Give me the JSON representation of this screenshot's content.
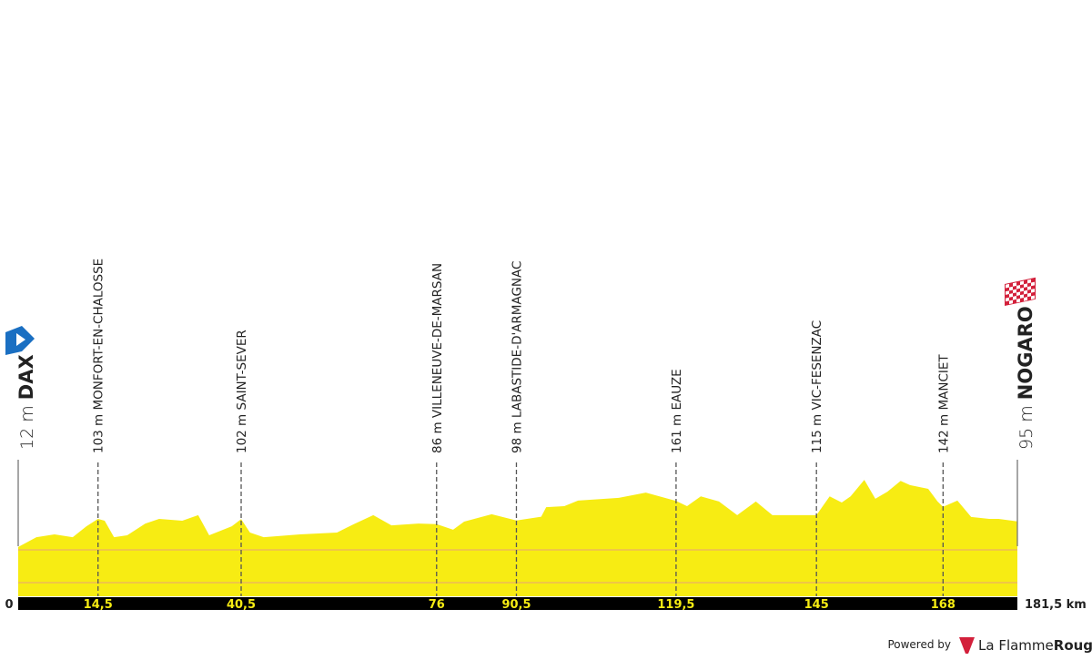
{
  "chart_data": {
    "type": "area",
    "color": "#f7ec13",
    "x": [
      0,
      3.3,
      6.6,
      9.9,
      12.4,
      14.5,
      15.7,
      17.4,
      19.8,
      23.1,
      25.6,
      29.8,
      32.7,
      34.7,
      38.8,
      40.5,
      42.1,
      44.6,
      51.2,
      57.9,
      61.2,
      64.5,
      67.8,
      72.7,
      76,
      79,
      81,
      86,
      90.5,
      95,
      95.9,
      99.2,
      101.7,
      109.1,
      114,
      119.5,
      121.5,
      124,
      127.3,
      130.6,
      134,
      137,
      142,
      145,
      147.4,
      149.6,
      151.2,
      153.7,
      155.7,
      157.9,
      160.3,
      162,
      165.3,
      167,
      168,
      170.6,
      173.1,
      176.4,
      178.1,
      181.5
    ],
    "values": [
      12,
      44,
      53,
      44,
      79,
      103,
      97,
      44,
      50,
      88,
      103,
      97,
      115,
      50,
      79,
      102,
      59,
      44,
      53,
      59,
      88,
      115,
      82,
      88,
      86,
      68,
      94,
      118,
      98,
      110,
      141,
      144,
      162,
      171,
      188,
      161,
      144,
      176,
      159,
      115,
      159,
      115,
      115,
      115,
      176,
      156,
      176,
      229,
      168,
      191,
      226,
      212,
      200,
      159,
      142,
      162,
      109,
      103,
      103,
      95
    ],
    "xlim": [
      0,
      181.5
    ],
    "ylim": [
      -147,
      300
    ],
    "xticks": [
      0,
      {
        "value": 14.5,
        "label": "14,5"
      },
      {
        "value": 40.5,
        "label": "40,5"
      },
      76,
      {
        "value": 90.5,
        "label": "90,5"
      },
      {
        "value": 119.5,
        "label": "119,5"
      },
      145,
      168,
      {
        "value": 181.5,
        "label": "181,5 km"
      }
    ],
    "start": {
      "altitude": "12 m",
      "name": "DAX"
    },
    "finish": {
      "altitude": "95 m",
      "name": "NOGARO"
    },
    "waypoints": [
      {
        "km": 14.5,
        "altitude": "103 m",
        "name": "MONFORT-EN-CHALOSSE"
      },
      {
        "km": 40.5,
        "altitude": "102 m",
        "name": "SAINT-SEVER"
      },
      {
        "km": 76,
        "altitude": "86 m",
        "name": "VILLENEUVE-DE-MARSAN"
      },
      {
        "km": 90.5,
        "altitude": "98 m",
        "name": "LABASTIDE-D'ARMAGNAC"
      },
      {
        "km": 119.5,
        "altitude": "161 m",
        "name": "EAUZE"
      },
      {
        "km": 145,
        "altitude": "115 m",
        "name": "VIC-FESENZAC"
      },
      {
        "km": 168,
        "altitude": "142 m",
        "name": "MANCIET"
      }
    ]
  },
  "footer": {
    "powered": "Powered by",
    "brand_light": "La Flamme",
    "brand_bold": "Rouge"
  }
}
